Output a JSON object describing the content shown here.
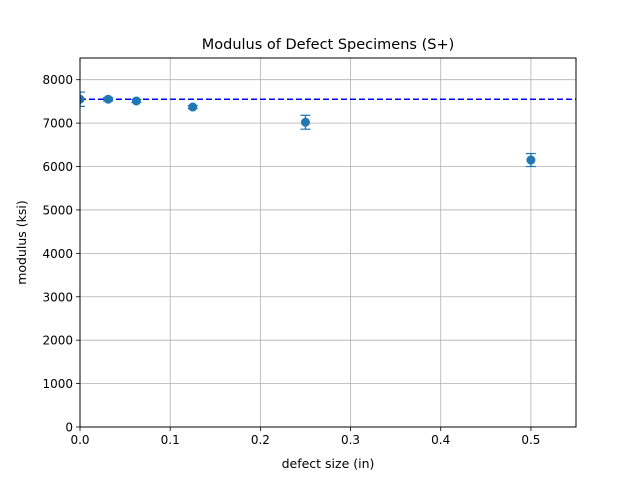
{
  "chart_data": {
    "type": "scatter",
    "title": "Modulus of Defect Specimens (S+)",
    "xlabel": "defect size (in)",
    "ylabel": "modulus (ksi)",
    "xlim": [
      0,
      0.55
    ],
    "ylim": [
      0,
      8500
    ],
    "x_ticks": [
      0.0,
      0.1,
      0.2,
      0.3,
      0.4,
      0.5
    ],
    "x_tick_labels": [
      "0.0",
      "0.1",
      "0.2",
      "0.3",
      "0.4",
      "0.5"
    ],
    "y_ticks": [
      0,
      1000,
      2000,
      3000,
      4000,
      5000,
      6000,
      7000,
      8000
    ],
    "y_tick_labels": [
      "0",
      "1000",
      "2000",
      "3000",
      "4000",
      "5000",
      "6000",
      "7000",
      "8000"
    ],
    "grid": true,
    "series": [
      {
        "x": [
          0.0,
          0.03125,
          0.0625,
          0.125,
          0.25,
          0.5
        ],
        "y": [
          7550,
          7550,
          7510,
          7370,
          7020,
          6150
        ],
        "yerr": [
          165,
          40,
          35,
          35,
          160,
          150
        ],
        "color": "#1f77b4"
      }
    ],
    "reference_line": {
      "y": 7550,
      "style": "dashed",
      "color": "#0000ff"
    }
  }
}
